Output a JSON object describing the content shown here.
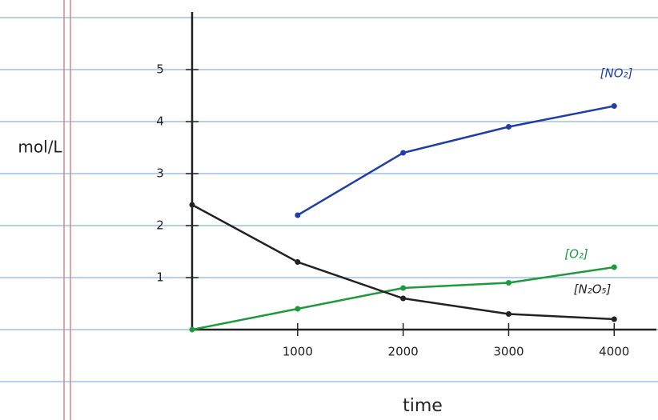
{
  "chart_data": {
    "type": "line",
    "x_label": "time",
    "y_label": "mol/L",
    "x": [
      0,
      1000,
      2000,
      3000,
      4000
    ],
    "series": [
      {
        "name": "[NO₂]",
        "color": "#1f3ea8",
        "values": [
          null,
          2.2,
          3.4,
          3.9,
          4.3
        ]
      },
      {
        "name": "[O₂]",
        "color": "#1e9a3c",
        "values": [
          0,
          0.4,
          0.8,
          0.9,
          1.2
        ]
      },
      {
        "name": "[N₂O₅]",
        "color": "#222222",
        "values": [
          2.4,
          1.3,
          0.6,
          0.3,
          0.2
        ]
      }
    ],
    "xlim": [
      0,
      4400
    ],
    "ylim": [
      0,
      6
    ],
    "xticks": [
      1000,
      2000,
      3000,
      4000
    ],
    "yticks": [
      1,
      2,
      3,
      4,
      5
    ]
  }
}
